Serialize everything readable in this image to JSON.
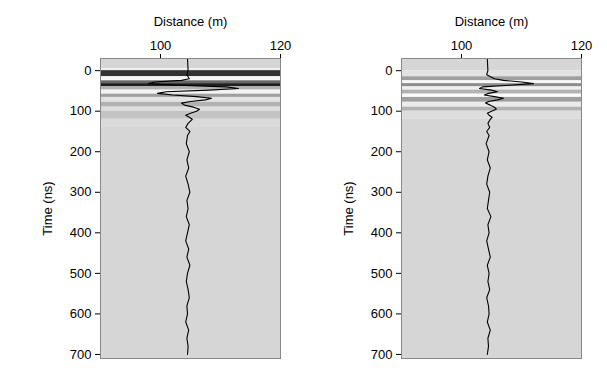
{
  "chart_data": [
    {
      "type": "line",
      "x_label": "Distance (m)",
      "y_label": "Time (ns)",
      "xlim": [
        90,
        120
      ],
      "xticks": [
        100,
        120
      ],
      "ylim": [
        -30,
        710
      ],
      "yticks": [
        0,
        100,
        200,
        300,
        400,
        500,
        600,
        700
      ],
      "color": "#000000",
      "y": [
        -30,
        0,
        10,
        20,
        24,
        28,
        32,
        36,
        40,
        44,
        48,
        52,
        56,
        60,
        64,
        68,
        72,
        76,
        80,
        85,
        90,
        95,
        100,
        105,
        110,
        115,
        120,
        130,
        140,
        150,
        160,
        180,
        200,
        220,
        240,
        260,
        280,
        300,
        320,
        340,
        360,
        380,
        400,
        420,
        440,
        460,
        480,
        500,
        520,
        540,
        560,
        580,
        600,
        620,
        640,
        660,
        680,
        700
      ],
      "values": [
        104.5,
        104.6,
        104.4,
        104.8,
        103.5,
        99,
        98,
        103,
        111,
        113,
        108,
        101,
        99.5,
        102,
        106,
        108.5,
        107.5,
        105,
        103.5,
        104,
        105.5,
        106.5,
        106,
        105,
        104.2,
        104.8,
        105.3,
        104.6,
        104.2,
        104.9,
        104.5,
        104.3,
        104.8,
        104.4,
        104.7,
        104.2,
        104.6,
        104.9,
        104.4,
        104.6,
        104.3,
        104.8,
        104.5,
        104.2,
        104.7,
        104.4,
        104.9,
        104.5,
        104.3,
        104.6,
        104.8,
        104.4,
        104.5,
        104.2,
        104.7,
        104.4,
        104.6,
        104.5
      ],
      "amplitude_bands": {
        "edges": [
          -30,
          -5,
          0,
          15,
          25,
          32,
          40,
          48,
          58,
          66,
          78,
          90,
          100,
          120,
          140,
          160,
          710
        ],
        "values": [
          0,
          -0.6,
          0.9,
          -0.8,
          0.6,
          1,
          0.2,
          -0.7,
          0.3,
          -0.3,
          0.2,
          -0.2,
          0.1,
          -0.1,
          0,
          0
        ]
      }
    },
    {
      "type": "line",
      "x_label": "Distance (m)",
      "y_label": "Time (ns)",
      "xlim": [
        90,
        120
      ],
      "xticks": [
        100,
        120
      ],
      "ylim": [
        -30,
        710
      ],
      "yticks": [
        0,
        100,
        200,
        300,
        400,
        500,
        600,
        700
      ],
      "color": "#000000",
      "y": [
        -30,
        0,
        10,
        20,
        24,
        28,
        32,
        36,
        40,
        44,
        48,
        52,
        56,
        60,
        64,
        68,
        72,
        76,
        80,
        85,
        90,
        95,
        100,
        105,
        110,
        115,
        120,
        130,
        140,
        150,
        160,
        180,
        200,
        220,
        240,
        260,
        280,
        300,
        320,
        340,
        360,
        380,
        400,
        420,
        440,
        460,
        480,
        500,
        520,
        540,
        560,
        580,
        600,
        620,
        640,
        660,
        680,
        700
      ],
      "values": [
        104.3,
        104.4,
        104.2,
        105.5,
        107,
        110,
        112,
        108,
        103.5,
        103,
        105,
        106,
        104.5,
        103.8,
        105.5,
        107,
        106,
        104.5,
        104,
        104.8,
        105.5,
        105.8,
        105,
        104.3,
        104.6,
        105.1,
        104.8,
        104.4,
        104.7,
        104.2,
        104.6,
        104.1,
        104.6,
        104.3,
        104.8,
        104.4,
        104.2,
        104.7,
        104.5,
        104.3,
        104.9,
        104.4,
        104.6,
        104.2,
        104.5,
        104.8,
        104.3,
        104.6,
        104.4,
        104.7,
        104.2,
        104.5,
        104.6,
        104.3,
        104.8,
        104.4,
        104.5,
        104.3
      ],
      "amplitude_bands": {
        "edges": [
          -30,
          0,
          15,
          25,
          32,
          40,
          48,
          58,
          66,
          78,
          90,
          100,
          120,
          710
        ],
        "values": [
          0,
          -0.3,
          0.3,
          -0.8,
          0.4,
          -0.6,
          0.2,
          -0.9,
          0.3,
          -0.5,
          0.2,
          -0.2,
          0
        ]
      }
    }
  ]
}
